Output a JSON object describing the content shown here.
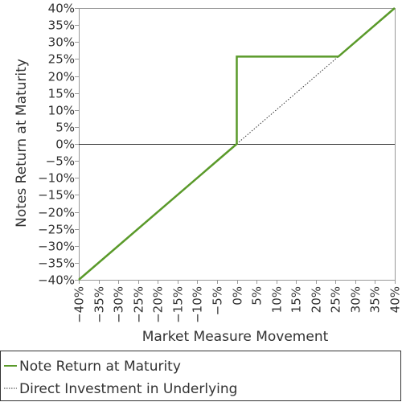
{
  "chart_data": {
    "type": "line",
    "xlabel": "Market Measure Movement",
    "ylabel": "Notes Return at Maturity",
    "xlim": [
      -40,
      40
    ],
    "ylim": [
      -40,
      40
    ],
    "x_ticks": [
      -40,
      -35,
      -30,
      -25,
      -20,
      -15,
      -10,
      -5,
      0,
      5,
      10,
      15,
      20,
      25,
      30,
      35,
      40
    ],
    "y_ticks": [
      -40,
      -35,
      -30,
      -25,
      -20,
      -15,
      -10,
      -5,
      0,
      5,
      10,
      15,
      20,
      25,
      30,
      35,
      40
    ],
    "x_tick_labels": [
      "−40%",
      "−35%",
      "−30%",
      "−25%",
      "−20%",
      "−15%",
      "−10%",
      "−5%",
      "0%",
      "5%",
      "10%",
      "15%",
      "20%",
      "25%",
      "30%",
      "35%",
      "40%"
    ],
    "y_tick_labels": [
      "−40%",
      "−35%",
      "−30%",
      "−25%",
      "−20%",
      "−15%",
      "−10%",
      "−5%",
      "0%",
      "5%",
      "10%",
      "15%",
      "20%",
      "25%",
      "30%",
      "35%",
      "40%"
    ],
    "grid": false,
    "legend_position": "bottom",
    "series": [
      {
        "name": "Note Return at Maturity",
        "color": "#5a9a2a",
        "style": "solid",
        "points": [
          [
            -40,
            -40
          ],
          [
            0,
            0
          ],
          [
            0,
            25.7
          ],
          [
            25.7,
            25.7
          ],
          [
            40,
            40
          ]
        ]
      },
      {
        "name": "Direct Investment in Underlying",
        "color": "#333333",
        "style": "dotted",
        "points": [
          [
            0,
            0
          ],
          [
            25.7,
            25.7
          ]
        ]
      }
    ]
  }
}
